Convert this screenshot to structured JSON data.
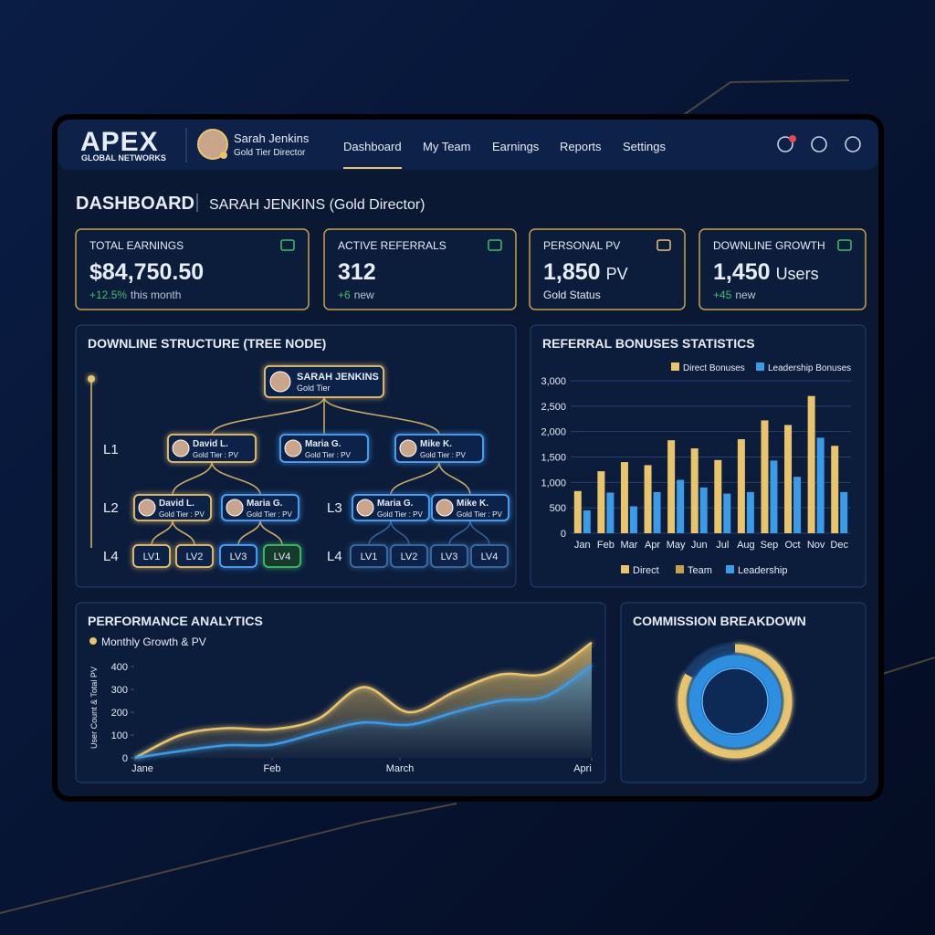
{
  "header": {
    "logo": "APEX",
    "logo_sub": "GLOBAL NETWORKS",
    "user_name": "Sarah Jenkins",
    "user_role": "Gold Tier Director"
  },
  "nav": [
    "Dashboard",
    "My Team",
    "Earnings",
    "Reports",
    "Settings"
  ],
  "active_nav": 0,
  "page": {
    "title": "DASHBOARD",
    "subtitle": "SARAH JENKINS (Gold Director)"
  },
  "cards": [
    {
      "label": "TOTAL EARNINGS",
      "value": "$84,750.50",
      "delta": "+12.5%",
      "note": "this month"
    },
    {
      "label": "ACTIVE REFERRALS",
      "value": "312",
      "delta": "+6",
      "note": "new"
    },
    {
      "label": "PERSONAL PV",
      "value": "1,850",
      "unit": "PV",
      "status": "Gold Status"
    },
    {
      "label": "DOWNLINE GROWTH",
      "value": "1,450",
      "unit": "Users",
      "delta": "+45",
      "note": "new"
    }
  ],
  "tree": {
    "title": "DOWNLINE STRUCTURE (TREE NODE)",
    "levels": [
      "L1",
      "L2",
      "L3",
      "L4",
      "L4"
    ],
    "nodes": [
      {
        "label": "SARAH JENKINS",
        "sub": "Gold Tier"
      },
      {
        "label": "David L.",
        "sub": "Gold Tier : PV"
      },
      {
        "label": "Maria G.",
        "sub": "Gold Tier : PV"
      },
      {
        "label": "Mike K.",
        "sub": "Gold Tier : PV"
      },
      {
        "label": "David L.",
        "sub": "Gold Tier : PV"
      },
      {
        "label": "Maria G.",
        "sub": "Gold Tier : PV"
      },
      {
        "label": "Maria G.",
        "sub": "Gold Tier : PV"
      },
      {
        "label": "Mike K.",
        "sub": "Gold Tier : PV"
      },
      {
        "label": "LV1"
      },
      {
        "label": "LV2"
      },
      {
        "label": "LV3"
      },
      {
        "label": "LV4"
      },
      {
        "label": "LV1"
      },
      {
        "label": "LV2"
      },
      {
        "label": "LV3"
      },
      {
        "label": "LV4"
      }
    ]
  },
  "chart_data": [
    {
      "type": "bar",
      "title": "REFERRAL BONUSES STATISTICS",
      "categories": [
        "Jan",
        "Feb",
        "Mar",
        "Apr",
        "May",
        "Jun",
        "Jul",
        "Aug",
        "Sep",
        "Oct",
        "Nov",
        "Dec"
      ],
      "series": [
        {
          "name": "Direct Bonuses",
          "color": "#e9c46a",
          "values": [
            830,
            1220,
            1400,
            1340,
            1830,
            1670,
            1440,
            1850,
            2220,
            2130,
            2700,
            1720
          ]
        },
        {
          "name": "Leadership Bonuses",
          "color": "#3a9be8",
          "values": [
            450,
            800,
            530,
            810,
            1050,
            900,
            780,
            810,
            1430,
            1110,
            1880,
            810
          ]
        }
      ],
      "ylim": [
        0,
        3000
      ],
      "yticks": [
        0,
        500,
        {
          "value": 1000,
          "label": "1,000"
        },
        {
          "value": 1500,
          "label": "1,500"
        },
        {
          "value": 2000,
          "label": "2,000"
        },
        {
          "value": 2500,
          "label": "2,500"
        },
        {
          "value": 3000,
          "label": "3,000"
        }
      ],
      "grid": true,
      "footer_legend": [
        {
          "name": "Direct",
          "color": "#e9c46a"
        },
        {
          "name": "Team",
          "color": "#c9a04a"
        },
        {
          "name": "Leadership",
          "color": "#3a9be8"
        }
      ]
    },
    {
      "type": "area",
      "title": "PERFORMANCE ANALYTICS",
      "legend": "Monthly Growth & PV",
      "ylabel": "User Count & Total PV",
      "x": [
        0,
        10,
        20,
        30,
        40,
        50,
        60,
        70,
        80,
        90,
        100
      ],
      "series": [
        {
          "color": "#e9c46a",
          "values": [
            0,
            100,
            130,
            125,
            170,
            310,
            200,
            290,
            365,
            370,
            505
          ]
        },
        {
          "color": "#3a9be8",
          "values": [
            0,
            30,
            55,
            58,
            110,
            155,
            145,
            200,
            250,
            270,
            405
          ]
        }
      ],
      "xlim": [
        0,
        100
      ],
      "xticks": [
        {
          "value": 0,
          "label": "Jane"
        },
        {
          "value": 30,
          "label": "Feb"
        },
        {
          "value": 58,
          "label": "March"
        },
        {
          "value": 100,
          "label": "Apri"
        }
      ],
      "ylim": [
        0,
        520
      ],
      "yticks": [
        0,
        100,
        200,
        300,
        400
      ]
    },
    {
      "type": "donut",
      "title": "COMMISSION BREAKDOWN",
      "rings": [
        {
          "values": [
            83,
            17
          ],
          "colors": [
            "#e9c46a",
            "#1c3a66"
          ]
        },
        {
          "values": [
            100
          ],
          "colors": [
            "#2f8fe0"
          ]
        }
      ]
    }
  ]
}
